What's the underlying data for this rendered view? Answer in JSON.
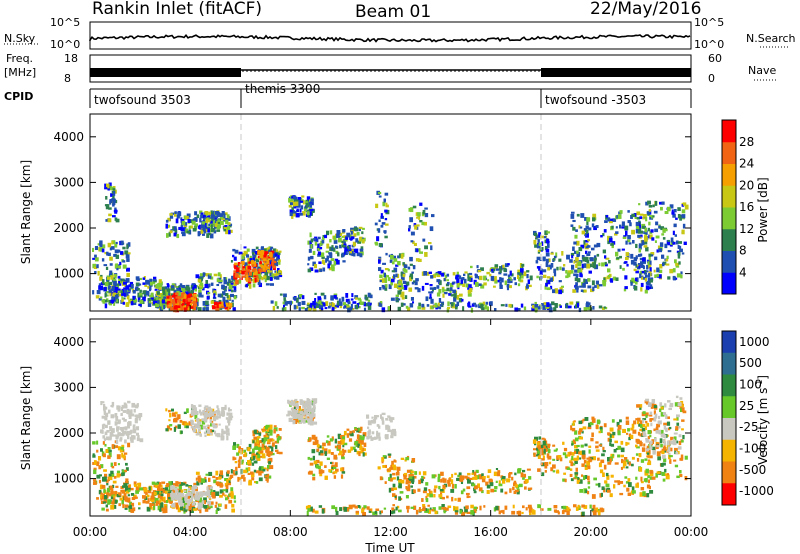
{
  "header": {
    "title": "Rankin Inlet (fitACF)",
    "beam": "Beam 01",
    "date": "22/May/2016"
  },
  "panels": {
    "nsky_label": "N.Sky",
    "nsky_ticks": [
      "10^5",
      "10^0"
    ],
    "nsearch_label": "N.Search",
    "nsearch_ticks": [
      "10^5",
      "10^0"
    ],
    "freq_label_1": "Freq.",
    "freq_label_2": "[MHz]",
    "freq_ticks": [
      "18",
      "8"
    ],
    "nave_label": "Nave",
    "nave_ticks": [
      "60",
      "0"
    ],
    "cpid_label": "CPID",
    "cpid_segments": [
      "twofsound 3503",
      "themis 3300",
      "twofsound -3503"
    ]
  },
  "chart_data": [
    {
      "type": "heatmap",
      "name": "power-panel",
      "ylabel": "Slant Range [km]",
      "yticks": [
        "4000",
        "3000",
        "2000",
        "1000"
      ],
      "ylim": [
        180,
        4500
      ],
      "colorbar_label": "Power [dB]",
      "colorbar_ticks": [
        "28",
        "24",
        "20",
        "16",
        "12",
        "8",
        "4"
      ],
      "colorbar_colors": [
        "#0000ff",
        "#1f4fb0",
        "#2d7f4e",
        "#7ccb33",
        "#c8c814",
        "#f5a000",
        "#f06414",
        "#ff0000"
      ]
    },
    {
      "type": "heatmap",
      "name": "velocity-panel",
      "ylabel": "Slant Range [km]",
      "yticks": [
        "4000",
        "3000",
        "2000",
        "1000"
      ],
      "ylim": [
        180,
        4500
      ],
      "colorbar_label": "Velocity [m s^-1]",
      "colorbar_ticks": [
        "1000",
        "500",
        "100",
        "25",
        "-25",
        "-100",
        "-500",
        "-1000"
      ],
      "colorbar_colors": [
        "#1c3fb0",
        "#2e6e91",
        "#2d8a3e",
        "#66c829",
        "#c8c8c0",
        "#f5b400",
        "#f08214",
        "#ff0000"
      ]
    }
  ],
  "xaxis": {
    "label": "Time UT",
    "ticks": [
      "00:00",
      "04:00",
      "08:00",
      "12:00",
      "16:00",
      "20:00",
      "00:00"
    ]
  }
}
